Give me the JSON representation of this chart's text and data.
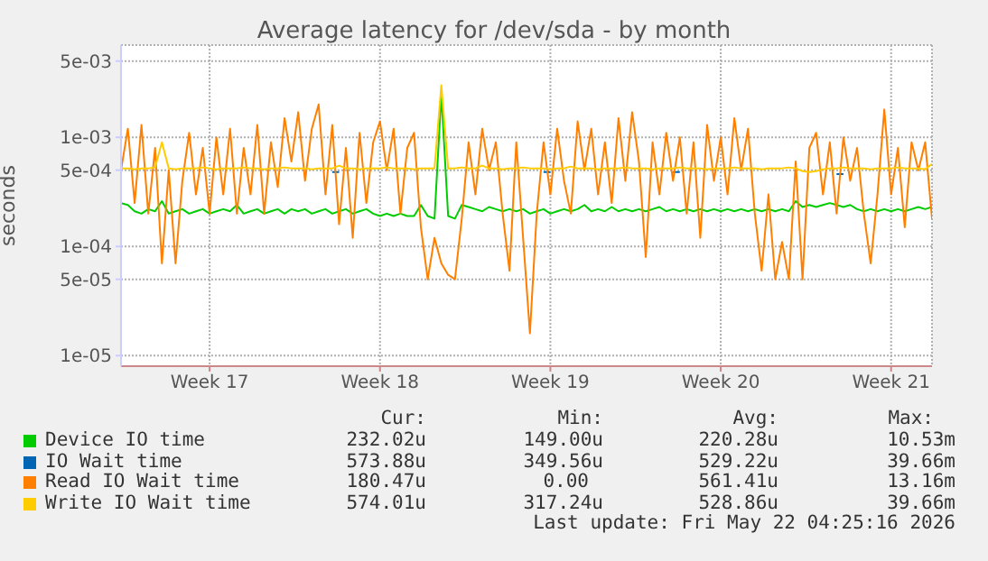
{
  "chart_data": {
    "type": "line",
    "title": "Average latency for /dev/sda - by month",
    "ylabel": "seconds",
    "log": "y",
    "grid": true,
    "legend": "bottom",
    "line_style": "solid",
    "categories": [
      null,
      null,
      null,
      null,
      null,
      null,
      null,
      null,
      null,
      null,
      null,
      null,
      null,
      "Week 17",
      null,
      null,
      null,
      null,
      null,
      null,
      null,
      null,
      null,
      null,
      null,
      null,
      null,
      null,
      null,
      null,
      null,
      null,
      null,
      null,
      null,
      null,
      null,
      null,
      "Week 18",
      null,
      null,
      null,
      null,
      null,
      null,
      null,
      null,
      null,
      null,
      null,
      null,
      null,
      null,
      null,
      null,
      null,
      null,
      null,
      null,
      null,
      null,
      null,
      null,
      "Week 19",
      null,
      null,
      null,
      null,
      null,
      null,
      null,
      null,
      null,
      null,
      null,
      null,
      null,
      null,
      null,
      null,
      null,
      null,
      null,
      null,
      null,
      null,
      null,
      null,
      "Week 20",
      null,
      null,
      null,
      null,
      null,
      null,
      null,
      null,
      null,
      null,
      null,
      null,
      null,
      null,
      null,
      null,
      null,
      null,
      null,
      null,
      null,
      null,
      null,
      null,
      "Week 21",
      null,
      null,
      null,
      null,
      null,
      null
    ],
    "ylim": [
      8e-06,
      0.007
    ],
    "yticks": [
      {
        "value": 1e-05,
        "label": "1e-05"
      },
      {
        "value": 5e-05,
        "label": "5e-05"
      },
      {
        "value": 0.0001,
        "label": "1e-04"
      },
      {
        "value": 0.0005,
        "label": "5e-04"
      },
      {
        "value": 0.001,
        "label": "1e-03"
      },
      {
        "value": 0.005,
        "label": "5e-03"
      }
    ],
    "series": [
      {
        "name": "Device IO time",
        "color": "#00cc00",
        "values": [
          0.00025,
          0.00024,
          0.00021,
          0.0002,
          0.00022,
          0.00021,
          0.00026,
          0.0002,
          0.00021,
          0.00022,
          0.0002,
          0.00021,
          0.00022,
          0.0002,
          0.00021,
          0.00022,
          0.00021,
          0.00024,
          0.0002,
          0.00021,
          0.00022,
          0.0002,
          0.00021,
          0.00022,
          0.0002,
          0.00022,
          0.00021,
          0.00022,
          0.0002,
          0.00021,
          0.00022,
          0.0002,
          0.00021,
          0.00022,
          0.0002,
          0.00021,
          0.00022,
          0.0002,
          0.00019,
          0.0002,
          0.00019,
          0.0002,
          0.00019,
          0.00019,
          0.00024,
          0.00019,
          0.00018,
          0.0025,
          0.00019,
          0.00018,
          0.00024,
          0.00023,
          0.00022,
          0.00021,
          0.00023,
          0.00022,
          0.00021,
          0.00022,
          0.00021,
          0.00022,
          0.0002,
          0.00021,
          0.00022,
          0.0002,
          0.00021,
          0.00022,
          0.00021,
          0.00022,
          0.00024,
          0.00021,
          0.00022,
          0.00021,
          0.00023,
          0.00021,
          0.00022,
          0.00021,
          0.00022,
          0.00021,
          0.00022,
          0.00023,
          0.00021,
          0.00022,
          0.00021,
          0.00022,
          0.00021,
          0.00022,
          0.00021,
          0.00022,
          0.00021,
          0.00022,
          0.00021,
          0.00022,
          0.00021,
          0.00022,
          0.00021,
          0.00022,
          0.00021,
          0.00022,
          0.00021,
          0.00026,
          0.00023,
          0.00024,
          0.00023,
          0.00024,
          0.00025,
          0.00024,
          0.00023,
          0.00024,
          0.00022,
          0.00021,
          0.00022,
          0.00021,
          0.00022,
          0.00021,
          0.00022,
          0.00021,
          0.00022,
          0.00023,
          0.00022,
          0.00023
        ]
      },
      {
        "name": "IO Wait time",
        "color": "#0066b3",
        "values": [
          null,
          null,
          null,
          null,
          null,
          null,
          null,
          null,
          null,
          null,
          null,
          null,
          null,
          null,
          null,
          null,
          null,
          null,
          null,
          null,
          null,
          null,
          null,
          null,
          null,
          null,
          null,
          null,
          null,
          null,
          null,
          0.00048,
          0.00048,
          null,
          null,
          null,
          null,
          null,
          null,
          null,
          null,
          null,
          null,
          null,
          null,
          null,
          null,
          null,
          null,
          null,
          null,
          null,
          null,
          null,
          null,
          null,
          null,
          null,
          null,
          null,
          null,
          null,
          0.00048,
          0.00048,
          null,
          null,
          null,
          null,
          null,
          null,
          null,
          null,
          null,
          null,
          null,
          null,
          null,
          null,
          null,
          null,
          null,
          0.00048,
          0.00048,
          null,
          null,
          null,
          null,
          null,
          null,
          null,
          null,
          null,
          null,
          null,
          null,
          null,
          null,
          null,
          null,
          null,
          null,
          null,
          null,
          null,
          null,
          0.00046,
          0.00046,
          null,
          null,
          null,
          null,
          null,
          null,
          null,
          null,
          null,
          null,
          null,
          null,
          null
        ]
      },
      {
        "name": "Read IO Wait time",
        "color": "#ff8000",
        "values": [
          0.0005,
          0.0012,
          0.00025,
          0.0013,
          0.0002,
          0.0008,
          7e-05,
          0.0005,
          7e-05,
          0.0004,
          0.0011,
          0.0003,
          0.0008,
          0.0002,
          0.001,
          0.0003,
          0.0012,
          0.0002,
          0.0008,
          0.0003,
          0.0013,
          0.0002,
          0.0009,
          0.00035,
          0.0015,
          0.0006,
          0.0017,
          0.0004,
          0.0012,
          0.002,
          0.0003,
          0.0013,
          0.00016,
          0.0008,
          0.00012,
          0.0011,
          0.00025,
          0.0009,
          0.0014,
          0.0005,
          0.0012,
          0.0002,
          0.0008,
          0.0011,
          0.00015,
          5e-05,
          0.00012,
          7e-05,
          5.5e-05,
          5e-05,
          0.00018,
          0.0009,
          0.0003,
          0.0012,
          0.0005,
          0.0009,
          0.0002,
          6e-05,
          0.0009,
          0.00012,
          1.6e-05,
          0.0002,
          0.0009,
          0.0003,
          0.0012,
          0.0004,
          0.0002,
          0.0014,
          0.0005,
          0.0012,
          0.0003,
          0.0009,
          0.00025,
          0.0015,
          0.0004,
          0.0017,
          0.0006,
          8e-05,
          0.0009,
          0.0003,
          0.0011,
          0.0004,
          0.001,
          0.0002,
          0.0009,
          0.00012,
          0.0013,
          0.0004,
          0.001,
          0.0003,
          0.0015,
          0.0005,
          0.0012,
          0.0002,
          6e-05,
          0.0003,
          5e-05,
          0.00011,
          5e-05,
          0.0006,
          5e-05,
          0.0008,
          0.0011,
          0.0003,
          0.0009,
          0.0002,
          0.001,
          0.0004,
          0.0008,
          0.0002,
          7e-05,
          0.0003,
          0.0018,
          0.0003,
          0.0008,
          0.00015,
          0.0009,
          0.0005,
          0.0009,
          0.00018
        ]
      },
      {
        "name": "Write IO Wait time",
        "color": "#ffcc00",
        "values": [
          0.00052,
          0.00052,
          0.00051,
          0.00052,
          0.00052,
          0.00053,
          0.0009,
          0.00052,
          0.00051,
          0.00052,
          0.00052,
          0.00052,
          0.00053,
          0.00052,
          0.00051,
          0.00052,
          0.00052,
          0.00052,
          0.00053,
          0.00052,
          0.00052,
          0.00051,
          0.00052,
          0.00052,
          0.00053,
          0.00052,
          0.00052,
          0.00052,
          0.00051,
          0.00052,
          0.00052,
          0.00052,
          0.00055,
          0.00052,
          0.00052,
          0.00051,
          0.00052,
          0.00052,
          0.00052,
          0.00053,
          0.00052,
          0.00052,
          0.00052,
          0.00051,
          0.00052,
          0.00052,
          0.00052,
          0.003,
          0.00052,
          0.00052,
          0.00053,
          0.00052,
          0.00052,
          0.00055,
          0.00052,
          0.00052,
          0.00051,
          0.00052,
          0.00052,
          0.00053,
          0.00052,
          0.00052,
          0.00052,
          0.00051,
          0.00052,
          0.00052,
          0.00054,
          0.00052,
          0.00052,
          0.00052,
          0.00051,
          0.00052,
          0.00052,
          0.00052,
          0.00053,
          0.00052,
          0.00052,
          0.00052,
          0.00051,
          0.00052,
          0.00052,
          0.00052,
          0.00053,
          0.00052,
          0.00052,
          0.00052,
          0.00051,
          0.00052,
          0.00052,
          0.00052,
          0.00053,
          0.00052,
          0.00052,
          0.00052,
          0.00051,
          0.00052,
          0.00052,
          0.00052,
          0.00053,
          0.00052,
          0.00049,
          0.00048,
          0.00049,
          0.00051,
          0.00052,
          0.00052,
          0.00053,
          0.00052,
          0.00052,
          0.00052,
          0.00051,
          0.00052,
          0.00052,
          0.00052,
          0.00053,
          0.00052,
          0.00052,
          0.00052,
          0.00051,
          0.00057
        ]
      }
    ],
    "annotations": [
      "Cur:",
      "Min:",
      "Avg:",
      "Max:",
      "232.02u",
      "149.00u",
      "220.28u",
      "10.53m",
      "573.88u",
      "349.56u",
      "529.22u",
      "39.66m",
      "180.47u",
      "0.00",
      "561.41u",
      "13.16m",
      "574.01u",
      "317.24u",
      "528.86u",
      "39.66m",
      "Last update: Fri May 22 04:25:16 2026"
    ]
  }
}
